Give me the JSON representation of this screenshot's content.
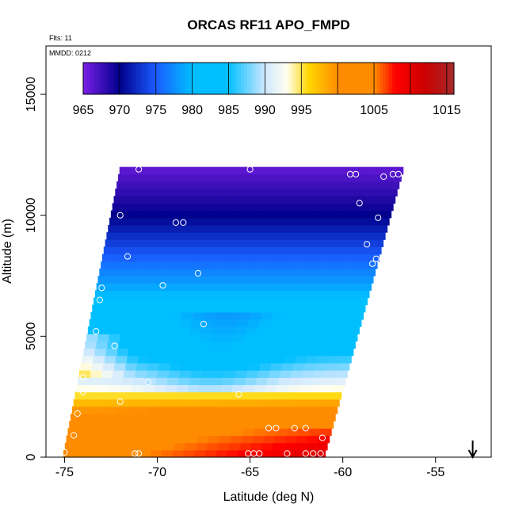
{
  "chart_data": {
    "type": "heatmap",
    "title": "ORCAS RF11 APO_FMPD",
    "flights_label": "Flts: 11",
    "date_label": "MMDD: 0212",
    "xlabel": "Latitude (deg N)",
    "ylabel": "Altitude (m)",
    "xlim": [
      -76,
      -52
    ],
    "ylim": [
      0,
      17000
    ],
    "x_ticks": [
      -75,
      -70,
      -65,
      -60,
      -55
    ],
    "x_tick_labels": [
      "-75",
      "-70",
      "-65",
      "-60",
      "-55"
    ],
    "y_ticks": [
      0,
      5000,
      10000,
      15000
    ],
    "y_tick_labels": [
      "0",
      "5000",
      "10000",
      "15000"
    ],
    "colorbar": {
      "ticks": [
        965,
        970,
        975,
        980,
        985,
        990,
        995,
        1005,
        1015
      ],
      "tick_labels": [
        "965",
        "970",
        "975",
        "980",
        "985",
        "990",
        "995",
        "1005",
        "1015"
      ],
      "range": [
        965,
        1016
      ],
      "colors": {
        "purple": "#7b1fe8",
        "navy": "#00008b",
        "blue": "#1a5cff",
        "cyan": "#00bfff",
        "paleblue": "#cfe8ff",
        "ivory": "#fffff0",
        "yellow": "#ffd700",
        "orange": "#ff8c00",
        "red": "#ff0000",
        "darkred": "#cc0000",
        "brown": "#a52a2a"
      }
    },
    "curtain": {
      "lat_bottom": [
        -75.1,
        -61.0
      ],
      "lat_top": [
        -72.0,
        -56.7
      ],
      "alt_range": [
        0,
        12000
      ],
      "profile": [
        {
          "alt": 0,
          "value": 1006
        },
        {
          "alt": 1000,
          "value": 1004
        },
        {
          "alt": 2000,
          "value": 1000
        },
        {
          "alt": 3000,
          "value": 992
        },
        {
          "alt": 4500,
          "value": 984
        },
        {
          "alt": 6000,
          "value": 982
        },
        {
          "alt": 8000,
          "value": 976
        },
        {
          "alt": 10000,
          "value": 970
        },
        {
          "alt": 12000,
          "value": 966
        }
      ]
    },
    "sample_points": [
      [
        -72.5,
        11900
      ],
      [
        -71.0,
        11900
      ],
      [
        -65.0,
        11900
      ],
      [
        -59.6,
        11700
      ],
      [
        -59.3,
        11700
      ],
      [
        -57.8,
        11600
      ],
      [
        -57.3,
        11700
      ],
      [
        -57.0,
        11700
      ],
      [
        -72.0,
        10000
      ],
      [
        -69.0,
        9700
      ],
      [
        -68.6,
        9700
      ],
      [
        -59.1,
        10500
      ],
      [
        -58.1,
        9900
      ],
      [
        -73.3,
        8200
      ],
      [
        -71.6,
        8300
      ],
      [
        -58.7,
        8800
      ],
      [
        -58.2,
        8200
      ],
      [
        -58.4,
        8000
      ],
      [
        -73.8,
        7300
      ],
      [
        -73.0,
        7000
      ],
      [
        -69.7,
        7100
      ],
      [
        -67.8,
        7600
      ],
      [
        -73.1,
        6500
      ],
      [
        -73.3,
        5200
      ],
      [
        -67.5,
        5500
      ],
      [
        -72.3,
        4600
      ],
      [
        -73.7,
        3900
      ],
      [
        -74.0,
        3300
      ],
      [
        -70.5,
        3100
      ],
      [
        -74.0,
        2700
      ],
      [
        -74.7,
        2600
      ],
      [
        -72.0,
        2300
      ],
      [
        -65.6,
        2600
      ],
      [
        -74.3,
        1800
      ],
      [
        -64.0,
        1200
      ],
      [
        -63.6,
        1200
      ],
      [
        -62.6,
        1200
      ],
      [
        -62.0,
        1200
      ],
      [
        -61.1,
        800
      ],
      [
        -74.5,
        900
      ],
      [
        -75.3,
        200
      ],
      [
        -75.0,
        200
      ],
      [
        -71.2,
        150
      ],
      [
        -71.0,
        150
      ],
      [
        -65.1,
        150
      ],
      [
        -64.8,
        150
      ],
      [
        -64.5,
        150
      ],
      [
        -63.0,
        150
      ],
      [
        -62.0,
        150
      ],
      [
        -61.6,
        150
      ],
      [
        -61.2,
        150
      ]
    ],
    "arrow_lat": -53
  }
}
